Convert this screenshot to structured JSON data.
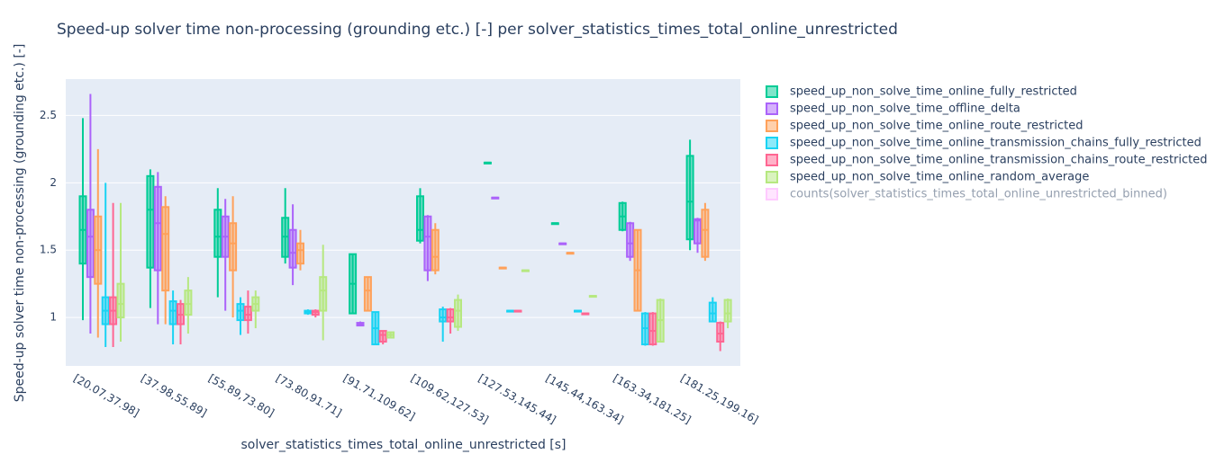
{
  "chart_data": {
    "type": "box",
    "title": "Speed-up solver time non-processing (grounding etc.) [-] per solver_statistics_times_total_online_unrestricted",
    "x_label": "solver_statistics_times_total_online_unrestricted [s]",
    "y_label": "Speed-up solver time non-processing (grounding etc.) [-]",
    "categories": [
      "[20.07,37.98]",
      "[37.98,55.89]",
      "[55.89,73.80]",
      "[73.80,91.71]",
      "[91.71,109.62]",
      "[109.62,127.53]",
      "[127.53,145.44]",
      "[145.44,163.34]",
      "[163.34,181.25]",
      "[181.25,199.16]"
    ],
    "ylim": [
      0.64,
      2.77
    ],
    "yticks": [
      1,
      1.5,
      2,
      2.5
    ],
    "grid": true,
    "series": [
      {
        "name": "speed_up_non_solve_time_online_fully_restricted",
        "color": "#00cc96",
        "values": [
          [
            0.98,
            1.4,
            1.65,
            1.9,
            2.48
          ],
          [
            1.07,
            1.37,
            1.8,
            2.05,
            2.1
          ],
          [
            1.15,
            1.45,
            1.6,
            1.8,
            1.96
          ],
          [
            1.4,
            1.45,
            1.6,
            1.74,
            1.96
          ],
          [
            1.03,
            1.03,
            1.25,
            1.47,
            1.47
          ],
          [
            1.55,
            1.57,
            1.65,
            1.9,
            1.96
          ],
          [
            2.15,
            2.15,
            2.15,
            2.15,
            2.15
          ],
          [
            1.7,
            1.7,
            1.7,
            1.7,
            1.7
          ],
          [
            1.64,
            1.65,
            1.75,
            1.85,
            1.86
          ],
          [
            1.5,
            1.58,
            1.86,
            2.2,
            2.32
          ]
        ]
      },
      {
        "name": "speed_up_non_solve_time_offline_delta",
        "color": "#ab63fa",
        "values": [
          [
            0.88,
            1.3,
            1.6,
            1.8,
            2.66
          ],
          [
            0.95,
            1.35,
            1.7,
            1.97,
            2.08
          ],
          [
            1.05,
            1.45,
            1.6,
            1.75,
            1.88
          ],
          [
            1.24,
            1.37,
            1.48,
            1.65,
            1.84
          ],
          [
            0.94,
            0.94,
            0.95,
            0.96,
            0.97
          ],
          [
            1.27,
            1.35,
            1.6,
            1.75,
            1.76
          ],
          [
            1.89,
            1.89,
            1.89,
            1.89,
            1.89
          ],
          [
            1.55,
            1.55,
            1.55,
            1.55,
            1.55
          ],
          [
            1.42,
            1.45,
            1.55,
            1.7,
            1.71
          ],
          [
            1.48,
            1.55,
            1.72,
            1.73,
            1.74
          ]
        ]
      },
      {
        "name": "speed_up_non_solve_time_online_route_restricted",
        "color": "#ffa15a",
        "values": [
          [
            0.85,
            1.25,
            1.5,
            1.75,
            2.25
          ],
          [
            0.95,
            1.2,
            1.62,
            1.82,
            1.9
          ],
          [
            1.0,
            1.35,
            1.55,
            1.7,
            1.9
          ],
          [
            1.35,
            1.4,
            1.5,
            1.55,
            1.65
          ],
          [
            1.05,
            1.05,
            1.2,
            1.3,
            1.3
          ],
          [
            1.32,
            1.35,
            1.45,
            1.65,
            1.7
          ],
          [
            1.37,
            1.37,
            1.37,
            1.37,
            1.37
          ],
          [
            1.48,
            1.48,
            1.48,
            1.48,
            1.48
          ],
          [
            1.05,
            1.05,
            1.35,
            1.65,
            1.65
          ],
          [
            1.42,
            1.45,
            1.65,
            1.8,
            1.85
          ]
        ]
      },
      {
        "name": "speed_up_non_solve_time_online_transmission_chains_fully_restricted",
        "color": "#19d3f3",
        "values": [
          [
            0.78,
            0.95,
            1.05,
            1.15,
            2.0
          ],
          [
            0.8,
            0.95,
            1.05,
            1.12,
            1.2
          ],
          [
            0.87,
            0.98,
            1.05,
            1.1,
            1.15
          ],
          [
            1.02,
            1.03,
            1.04,
            1.05,
            1.06
          ],
          [
            0.8,
            0.8,
            0.92,
            1.04,
            1.04
          ],
          [
            0.82,
            0.97,
            1.0,
            1.06,
            1.08
          ],
          [
            1.05,
            1.05,
            1.05,
            1.05,
            1.05
          ],
          [
            1.05,
            1.05,
            1.05,
            1.05,
            1.05
          ],
          [
            0.79,
            0.8,
            0.92,
            1.03,
            1.04
          ],
          [
            0.97,
            0.97,
            1.03,
            1.11,
            1.15
          ]
        ]
      },
      {
        "name": "speed_up_non_solve_time_online_transmission_chains_route_restricted",
        "color": "#ff6692",
        "values": [
          [
            0.78,
            0.95,
            1.05,
            1.15,
            1.85
          ],
          [
            0.8,
            0.95,
            1.02,
            1.1,
            1.13
          ],
          [
            0.88,
            0.98,
            1.02,
            1.08,
            1.2
          ],
          [
            1.0,
            1.02,
            1.04,
            1.05,
            1.06
          ],
          [
            0.8,
            0.82,
            0.87,
            0.9,
            0.9
          ],
          [
            0.88,
            0.97,
            1.0,
            1.06,
            1.07
          ],
          [
            1.05,
            1.05,
            1.05,
            1.05,
            1.05
          ],
          [
            1.03,
            1.03,
            1.03,
            1.03,
            1.03
          ],
          [
            0.79,
            0.8,
            0.9,
            1.03,
            1.04
          ],
          [
            0.75,
            0.82,
            0.88,
            0.96,
            0.97
          ]
        ]
      },
      {
        "name": "speed_up_non_solve_time_online_random_average",
        "color": "#b6e880",
        "values": [
          [
            0.82,
            1.0,
            1.1,
            1.25,
            1.85
          ],
          [
            0.88,
            1.02,
            1.1,
            1.2,
            1.3
          ],
          [
            0.92,
            1.05,
            1.1,
            1.15,
            1.2
          ],
          [
            0.83,
            1.05,
            1.2,
            1.3,
            1.54
          ],
          [
            0.85,
            0.85,
            0.87,
            0.89,
            0.89
          ],
          [
            0.9,
            0.93,
            1.05,
            1.13,
            1.17
          ],
          [
            1.35,
            1.35,
            1.35,
            1.35,
            1.35
          ],
          [
            1.16,
            1.16,
            1.16,
            1.16,
            1.16
          ],
          [
            0.82,
            0.82,
            0.98,
            1.13,
            1.14
          ],
          [
            0.92,
            0.97,
            1.03,
            1.13,
            1.14
          ]
        ]
      },
      {
        "name": "counts(solver_statistics_times_total_online_unrestricted_binned)",
        "color": "#ff97ff",
        "visible": "legendonly"
      }
    ]
  }
}
